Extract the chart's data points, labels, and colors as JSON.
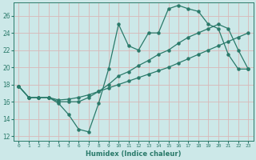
{
  "xlabel": "Humidex (Indice chaleur)",
  "bg_color": "#cce8e8",
  "grid_color": "#b8d8d8",
  "line_color": "#2a7a6a",
  "x_ticks": [
    0,
    1,
    2,
    3,
    4,
    5,
    6,
    7,
    8,
    9,
    10,
    11,
    12,
    13,
    14,
    15,
    16,
    17,
    18,
    19,
    20,
    21,
    22,
    23
  ],
  "ylim": [
    11.5,
    27.5
  ],
  "xlim": [
    -0.5,
    23.5
  ],
  "yticks": [
    12,
    14,
    16,
    18,
    20,
    22,
    24,
    26
  ],
  "line1_y": [
    17.8,
    16.5,
    16.5,
    16.5,
    15.8,
    14.5,
    12.8,
    12.5,
    15.8,
    19.8,
    25.0,
    22.5,
    22.0,
    24.0,
    24.0,
    26.8,
    27.2,
    26.8,
    26.5,
    25.0,
    24.5,
    21.5,
    19.8,
    19.8
  ],
  "line2_y": [
    17.8,
    16.5,
    16.5,
    16.5,
    16.0,
    16.0,
    16.0,
    16.5,
    17.2,
    18.0,
    19.0,
    19.5,
    20.2,
    20.8,
    21.5,
    22.0,
    22.8,
    23.5,
    24.0,
    24.5,
    25.0,
    24.5,
    22.0,
    19.8
  ],
  "line3_y": [
    17.8,
    16.5,
    16.5,
    16.5,
    16.2,
    16.3,
    16.5,
    16.8,
    17.2,
    17.6,
    18.0,
    18.4,
    18.8,
    19.2,
    19.6,
    20.0,
    20.5,
    21.0,
    21.5,
    22.0,
    22.5,
    23.0,
    23.5,
    24.0
  ]
}
